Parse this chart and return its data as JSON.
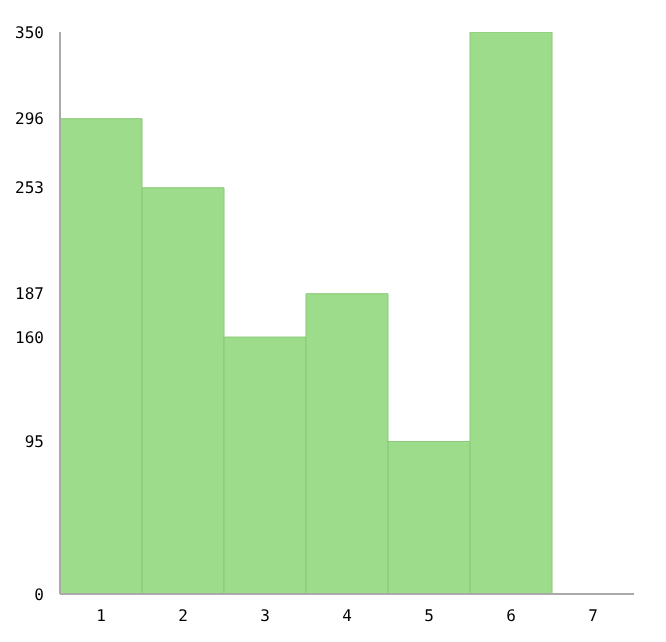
{
  "chart_data": {
    "type": "bar",
    "categories": [
      "1",
      "2",
      "3",
      "4",
      "5",
      "6",
      "7"
    ],
    "values": [
      296,
      253,
      160,
      187,
      95,
      350,
      0
    ],
    "color": "#9ddc8a",
    "ylim": [
      0,
      350
    ],
    "yticks": [
      0,
      95,
      160,
      187,
      253,
      296,
      350
    ],
    "grid": false
  }
}
